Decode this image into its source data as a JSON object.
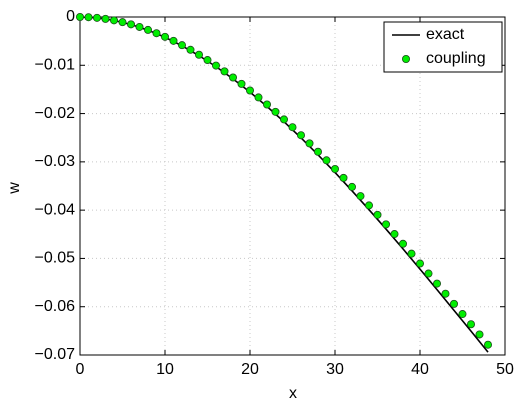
{
  "chart_data": {
    "type": "line",
    "xlabel": "x",
    "ylabel": "w",
    "xlim": [
      0,
      50
    ],
    "xticks": [
      0,
      10,
      20,
      30,
      40,
      50
    ],
    "ylim": [
      -0.07,
      0
    ],
    "yticks": [
      {
        "value": -0.07,
        "label": "−0.07"
      },
      {
        "value": -0.06,
        "label": "−0.06"
      },
      {
        "value": -0.05,
        "label": "−0.05"
      },
      {
        "value": -0.04,
        "label": "−0.04"
      },
      {
        "value": -0.03,
        "label": "−0.03"
      },
      {
        "value": -0.02,
        "label": "−0.02"
      },
      {
        "value": -0.01,
        "label": "−0.01"
      },
      0
    ],
    "grid": true,
    "legend": "upper right",
    "series": [
      {
        "name": "exact",
        "type": "line",
        "color": "#000000",
        "x": [
          0,
          2,
          4,
          6,
          8,
          10,
          12,
          14,
          16,
          18,
          20,
          22,
          24,
          26,
          28,
          30,
          32,
          34,
          36,
          38,
          40,
          42,
          44,
          46,
          48
        ],
        "values": [
          0,
          -0.00018,
          -0.0007,
          -0.00156,
          -0.00273,
          -0.0042,
          -0.00596,
          -0.008,
          -0.01028,
          -0.01281,
          -0.01556,
          -0.01853,
          -0.02169,
          -0.02503,
          -0.02854,
          -0.03219,
          -0.03599,
          -0.0399,
          -0.04392,
          -0.04803,
          -0.05221,
          -0.05646,
          -0.06075,
          -0.06506,
          -0.0694
        ]
      },
      {
        "name": "coupling",
        "type": "scatter",
        "color": "#00ee00",
        "x": [
          0,
          1,
          2,
          3,
          4,
          5,
          6,
          7,
          8,
          9,
          10,
          11,
          12,
          13,
          14,
          15,
          16,
          17,
          18,
          19,
          20,
          21,
          22,
          23,
          24,
          25,
          26,
          27,
          28,
          29,
          30,
          31,
          32,
          33,
          34,
          35,
          36,
          37,
          38,
          39,
          40,
          41,
          42,
          43,
          44,
          45,
          46,
          47,
          48
        ],
        "values": [
          0,
          -4e-05,
          -0.00017,
          -0.00039,
          -0.00069,
          -0.00107,
          -0.00152,
          -0.00206,
          -0.00267,
          -0.00336,
          -0.00411,
          -0.00494,
          -0.00583,
          -0.00679,
          -0.00782,
          -0.00891,
          -0.01006,
          -0.01126,
          -0.01253,
          -0.01385,
          -0.01522,
          -0.01665,
          -0.01812,
          -0.01964,
          -0.02121,
          -0.02282,
          -0.02448,
          -0.02617,
          -0.02791,
          -0.02968,
          -0.03148,
          -0.03332,
          -0.03519,
          -0.03709,
          -0.03902,
          -0.04097,
          -0.04295,
          -0.04495,
          -0.04697,
          -0.04901,
          -0.05106,
          -0.05313,
          -0.05521,
          -0.05731,
          -0.05941,
          -0.06152,
          -0.06363,
          -0.06575,
          -0.06787
        ]
      }
    ]
  }
}
